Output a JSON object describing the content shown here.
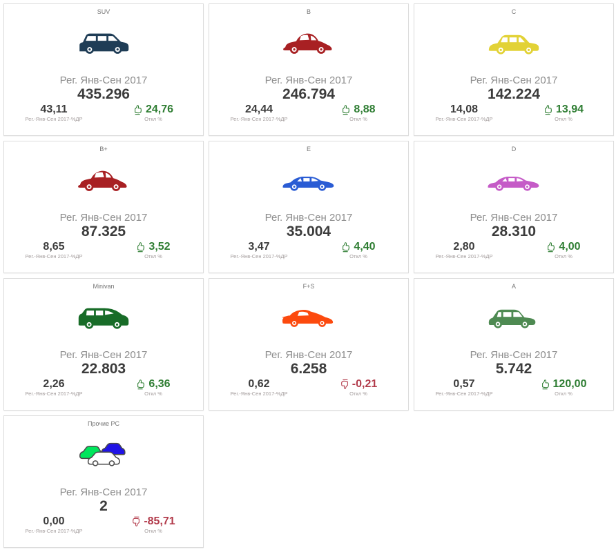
{
  "page": {
    "background": "#ffffff"
  },
  "colors": {
    "positive": "#2e7d32",
    "negative": "#b23b4b",
    "card_border": "#dcdcdc"
  },
  "cards": [
    {
      "title": "SUV",
      "icon": "suv-car-icon",
      "color": "#1f3d56",
      "period_label": "Рег. Янв-Сен 2017",
      "value": "435.296",
      "share": "43,11",
      "share_label": "Рег.-Янв-Сен 2017-%ДР",
      "deviation": "24,76",
      "deviation_label": "Откл %",
      "trend": "up"
    },
    {
      "title": "B",
      "icon": "beetle-car-icon",
      "color": "#a82023",
      "period_label": "Рег. Янв-Сен 2017",
      "value": "246.794",
      "share": "24,44",
      "share_label": "Рег.-Янв-Сен 2017-%ДР",
      "deviation": "8,88",
      "deviation_label": "Откл %",
      "trend": "up"
    },
    {
      "title": "C",
      "icon": "crossover-car-icon",
      "color": "#e2d236",
      "period_label": "Рег. Янв-Сен 2017",
      "value": "142.224",
      "share": "14,08",
      "share_label": "Рег.-Янв-Сен 2017-%ДР",
      "deviation": "13,94",
      "deviation_label": "Откл %",
      "trend": "up"
    },
    {
      "title": "B+",
      "icon": "beetle-car-icon",
      "color": "#a82023",
      "period_label": "Рег. Янв-Сен 2017",
      "value": "87.325",
      "share": "8,65",
      "share_label": "Рег.-Янв-Сен 2017-%ДР",
      "deviation": "3,52",
      "deviation_label": "Откл %",
      "trend": "up"
    },
    {
      "title": "E",
      "icon": "sedan-car-icon",
      "color": "#2a5cd4",
      "period_label": "Рег. Янв-Сен 2017",
      "value": "35.004",
      "share": "3,47",
      "share_label": "Рег.-Янв-Сен 2017-%ДР",
      "deviation": "4,40",
      "deviation_label": "Откл %",
      "trend": "up"
    },
    {
      "title": "D",
      "icon": "sedan-car-icon",
      "color": "#c55bc7",
      "period_label": "Рег. Янв-Сен 2017",
      "value": "28.310",
      "share": "2,80",
      "share_label": "Рег.-Янв-Сен 2017-%ДР",
      "deviation": "4,00",
      "deviation_label": "Откл %",
      "trend": "up"
    },
    {
      "title": "Minivan",
      "icon": "minivan-car-icon",
      "color": "#186c28",
      "period_label": "Рег. Янв-Сен 2017",
      "value": "22.803",
      "share": "2,26",
      "share_label": "Рег.-Янв-Сен 2017-%ДР",
      "deviation": "6,36",
      "deviation_label": "Откл %",
      "trend": "up"
    },
    {
      "title": "F+S",
      "icon": "sports-car-icon",
      "color": "#fc4a0e",
      "period_label": "Рег. Янв-Сен 2017",
      "value": "6.258",
      "share": "0,62",
      "share_label": "Рег.-Янв-Сен 2017-%ДР",
      "deviation": "-0,21",
      "deviation_label": "Откл %",
      "trend": "down"
    },
    {
      "title": "A",
      "icon": "compact-car-icon",
      "color": "#4e8a52",
      "period_label": "Рег. Янв-Сен 2017",
      "value": "5.742",
      "share": "0,57",
      "share_label": "Рег.-Янв-Сен 2017-%ДР",
      "deviation": "120,00",
      "deviation_label": "Откл %",
      "trend": "up"
    },
    {
      "title": "Прочие PC",
      "icon": "mixed-cars-icon",
      "color": "#00e65c",
      "period_label": "Рег. Янв-Сен 2017",
      "value": "2",
      "share": "0,00",
      "share_label": "Рег.-Янв-Сен 2017-%ДР",
      "deviation": "-85,71",
      "deviation_label": "Откл %",
      "trend": "down"
    }
  ]
}
